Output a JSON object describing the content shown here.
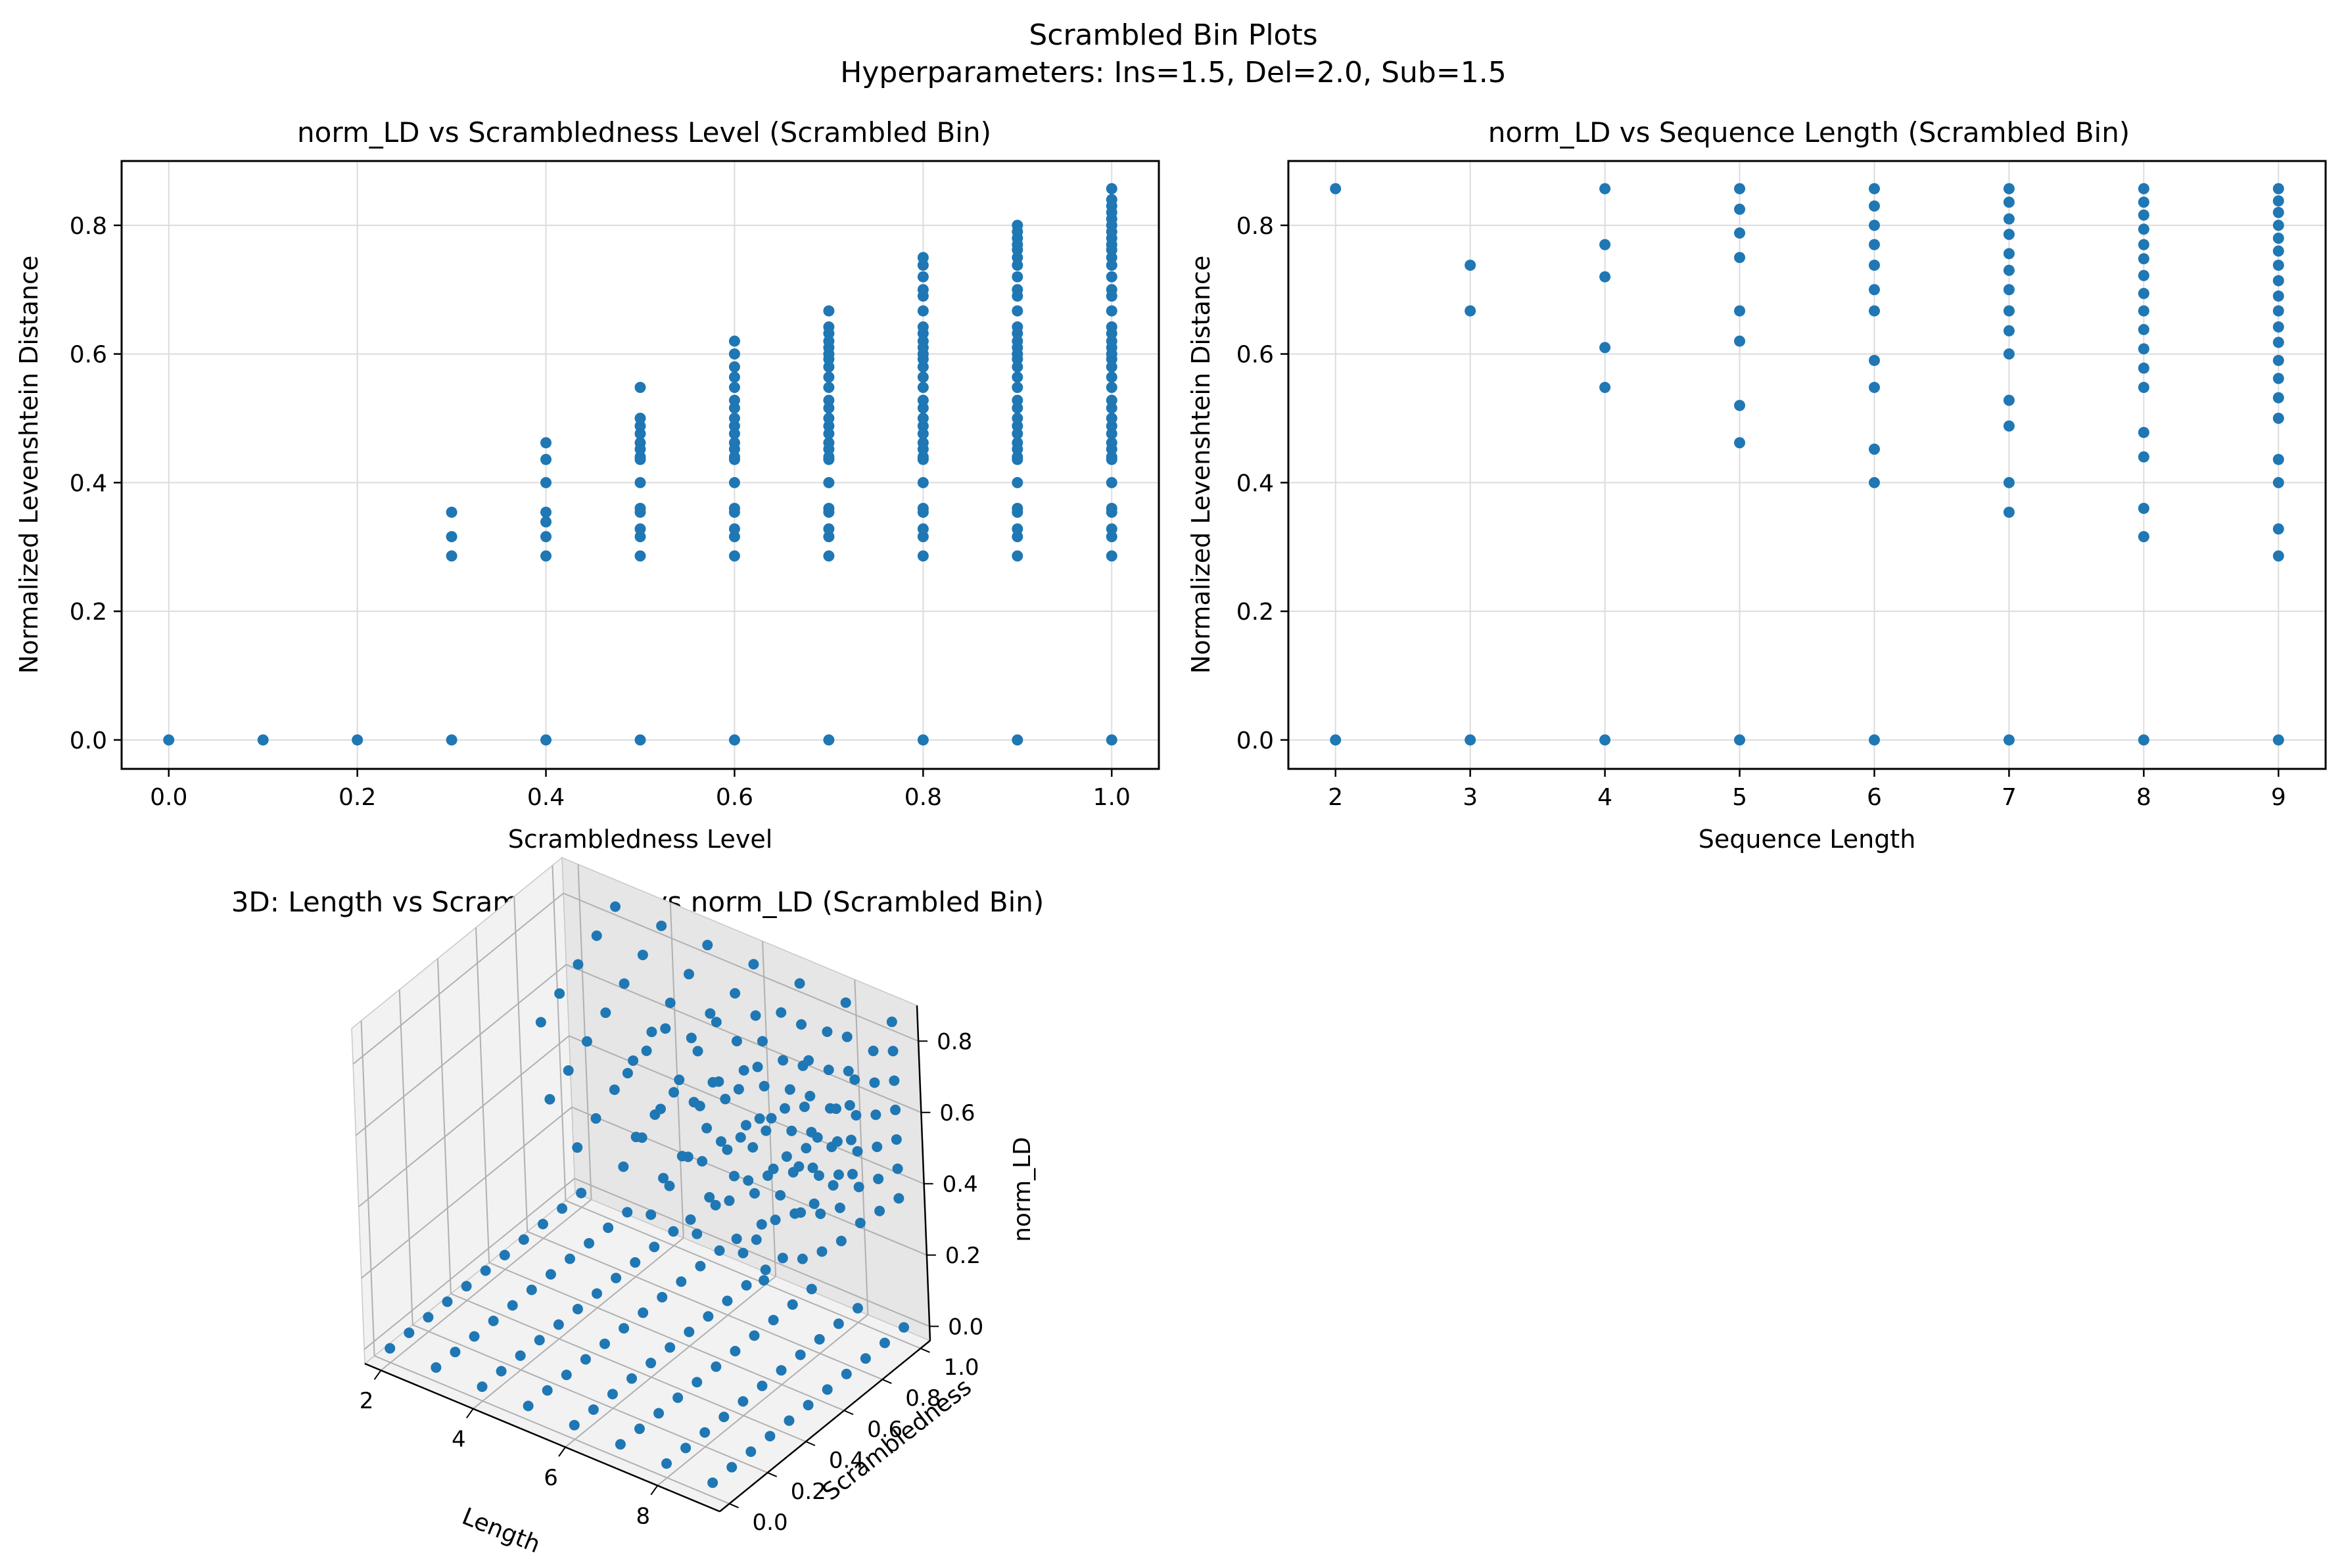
{
  "figure": {
    "title": "Scrambled Bin Plots",
    "subtitle": "Hyperparameters: Ins=1.5, Del=2.0, Sub=1.5"
  },
  "colors": {
    "marker": "#1f77b4",
    "grid": "#dcdcdc",
    "pane": "#f2f2f2",
    "pane_dark": "#e6e6e6"
  },
  "chart_data": [
    {
      "id": "scatter-scrambledness",
      "type": "scatter",
      "title": "norm_LD vs Scrambledness Level (Scrambled Bin)",
      "xlabel": "Scrambledness Level",
      "ylabel": "Normalized Levenshtein Distance",
      "xlim": [
        -0.05,
        1.05
      ],
      "ylim": [
        -0.045,
        0.9
      ],
      "xticks": [
        0.0,
        0.2,
        0.4,
        0.6,
        0.8,
        1.0
      ],
      "xtick_labels": [
        "0.0",
        "0.2",
        "0.4",
        "0.6",
        "0.8",
        "1.0"
      ],
      "yticks": [
        0.0,
        0.2,
        0.4,
        0.6,
        0.8
      ],
      "ytick_labels": [
        "0.0",
        "0.2",
        "0.4",
        "0.6",
        "0.8"
      ],
      "grid": true,
      "points": [
        {
          "x": 0.0,
          "y": [
            0.0
          ]
        },
        {
          "x": 0.1,
          "y": [
            0.0
          ]
        },
        {
          "x": 0.2,
          "y": [
            0.0
          ]
        },
        {
          "x": 0.3,
          "y": [
            0.0,
            0.286,
            0.316,
            0.354
          ]
        },
        {
          "x": 0.4,
          "y": [
            0.0,
            0.286,
            0.316,
            0.339,
            0.354,
            0.4,
            0.436,
            0.462
          ]
        },
        {
          "x": 0.5,
          "y": [
            0.0,
            0.286,
            0.316,
            0.328,
            0.354,
            0.36,
            0.4,
            0.436,
            0.44,
            0.452,
            0.462,
            0.476,
            0.488,
            0.5,
            0.548
          ]
        },
        {
          "x": 0.6,
          "y": [
            0.0,
            0.286,
            0.316,
            0.328,
            0.354,
            0.36,
            0.4,
            0.436,
            0.44,
            0.452,
            0.462,
            0.476,
            0.488,
            0.5,
            0.516,
            0.528,
            0.548,
            0.564,
            0.58,
            0.6,
            0.62
          ]
        },
        {
          "x": 0.7,
          "y": [
            0.0,
            0.286,
            0.316,
            0.328,
            0.354,
            0.36,
            0.4,
            0.436,
            0.44,
            0.452,
            0.462,
            0.476,
            0.488,
            0.5,
            0.516,
            0.528,
            0.548,
            0.564,
            0.58,
            0.592,
            0.6,
            0.61,
            0.62,
            0.632,
            0.642,
            0.667
          ]
        },
        {
          "x": 0.8,
          "y": [
            0.0,
            0.286,
            0.316,
            0.328,
            0.354,
            0.36,
            0.4,
            0.436,
            0.44,
            0.452,
            0.462,
            0.476,
            0.488,
            0.5,
            0.516,
            0.528,
            0.548,
            0.564,
            0.58,
            0.592,
            0.6,
            0.61,
            0.62,
            0.632,
            0.642,
            0.667,
            0.69,
            0.7,
            0.72,
            0.738,
            0.75
          ]
        },
        {
          "x": 0.9,
          "y": [
            0.0,
            0.286,
            0.316,
            0.328,
            0.354,
            0.36,
            0.4,
            0.436,
            0.44,
            0.452,
            0.462,
            0.476,
            0.488,
            0.5,
            0.516,
            0.528,
            0.548,
            0.564,
            0.58,
            0.592,
            0.6,
            0.61,
            0.62,
            0.632,
            0.642,
            0.667,
            0.69,
            0.7,
            0.72,
            0.738,
            0.75,
            0.762,
            0.77,
            0.78,
            0.79,
            0.8
          ]
        },
        {
          "x": 1.0,
          "y": [
            0.0,
            0.286,
            0.316,
            0.328,
            0.354,
            0.36,
            0.4,
            0.436,
            0.44,
            0.452,
            0.462,
            0.476,
            0.488,
            0.5,
            0.516,
            0.528,
            0.548,
            0.564,
            0.58,
            0.592,
            0.6,
            0.61,
            0.62,
            0.632,
            0.642,
            0.667,
            0.69,
            0.7,
            0.72,
            0.738,
            0.75,
            0.762,
            0.77,
            0.78,
            0.79,
            0.8,
            0.81,
            0.82,
            0.83,
            0.84,
            0.857
          ]
        }
      ]
    },
    {
      "id": "scatter-length",
      "type": "scatter",
      "title": "norm_LD vs Sequence Length (Scrambled Bin)",
      "xlabel": "Sequence Length",
      "ylabel": "Normalized Levenshtein Distance",
      "xlim": [
        1.65,
        9.35
      ],
      "ylim": [
        -0.045,
        0.9
      ],
      "xticks": [
        2,
        3,
        4,
        5,
        6,
        7,
        8,
        9
      ],
      "xtick_labels": [
        "2",
        "3",
        "4",
        "5",
        "6",
        "7",
        "8",
        "9"
      ],
      "yticks": [
        0.0,
        0.2,
        0.4,
        0.6,
        0.8
      ],
      "ytick_labels": [
        "0.0",
        "0.2",
        "0.4",
        "0.6",
        "0.8"
      ],
      "grid": true,
      "points": [
        {
          "x": 2,
          "y": [
            0.0,
            0.857
          ]
        },
        {
          "x": 3,
          "y": [
            0.0,
            0.667,
            0.738
          ]
        },
        {
          "x": 4,
          "y": [
            0.0,
            0.548,
            0.61,
            0.72,
            0.77,
            0.857
          ]
        },
        {
          "x": 5,
          "y": [
            0.0,
            0.462,
            0.52,
            0.62,
            0.667,
            0.75,
            0.788,
            0.825,
            0.857
          ]
        },
        {
          "x": 6,
          "y": [
            0.0,
            0.4,
            0.452,
            0.548,
            0.59,
            0.667,
            0.7,
            0.738,
            0.77,
            0.8,
            0.83,
            0.857
          ]
        },
        {
          "x": 7,
          "y": [
            0.0,
            0.354,
            0.4,
            0.488,
            0.528,
            0.6,
            0.636,
            0.667,
            0.7,
            0.73,
            0.756,
            0.786,
            0.81,
            0.836,
            0.857
          ]
        },
        {
          "x": 8,
          "y": [
            0.0,
            0.316,
            0.36,
            0.44,
            0.478,
            0.548,
            0.578,
            0.608,
            0.638,
            0.667,
            0.694,
            0.722,
            0.748,
            0.77,
            0.794,
            0.816,
            0.836,
            0.857
          ]
        },
        {
          "x": 9,
          "y": [
            0.0,
            0.286,
            0.328,
            0.4,
            0.436,
            0.5,
            0.532,
            0.562,
            0.59,
            0.618,
            0.642,
            0.667,
            0.69,
            0.714,
            0.738,
            0.76,
            0.78,
            0.8,
            0.82,
            0.838,
            0.857
          ]
        }
      ]
    },
    {
      "id": "scatter-3d",
      "type": "scatter",
      "title": "3D: Length vs Scrambledness vs norm_LD (Scrambled Bin)",
      "xlabel": "Length",
      "ylabel": "Scrambledness",
      "zlabel": "norm_LD",
      "xlim": [
        1.65,
        9.35
      ],
      "ylim": [
        -0.05,
        1.05
      ],
      "zlim": [
        -0.04,
        0.9
      ],
      "xticks": [
        2,
        4,
        6,
        8
      ],
      "xtick_labels": [
        "2",
        "4",
        "6",
        "8"
      ],
      "yticks": [
        0.0,
        0.2,
        0.4,
        0.6,
        0.8,
        1.0
      ],
      "ytick_labels": [
        "0.0",
        "0.2",
        "0.4",
        "0.6",
        "0.8",
        "1.0"
      ],
      "zticks": [
        0.0,
        0.2,
        0.4,
        0.6,
        0.8
      ],
      "ztick_labels": [
        "0.0",
        "0.2",
        "0.4",
        "0.6",
        "0.8"
      ],
      "grid": true,
      "lengths": [
        2,
        3,
        4,
        5,
        6,
        7,
        8,
        9
      ],
      "scrambledness_levels": [
        0.0,
        0.1,
        0.2,
        0.3,
        0.4,
        0.5,
        0.6,
        0.7,
        0.8,
        0.9,
        1.0
      ]
    }
  ]
}
